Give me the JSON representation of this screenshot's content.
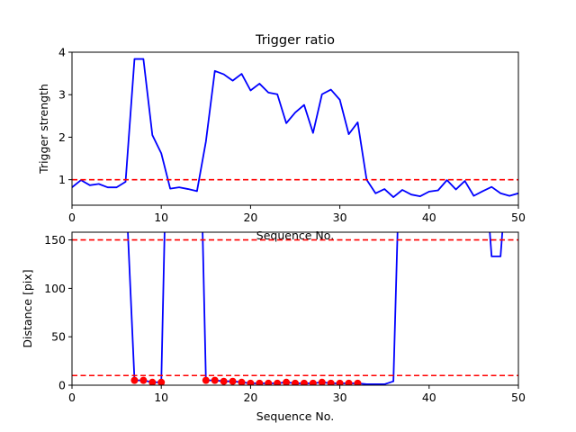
{
  "chart_data": [
    {
      "type": "line",
      "title": "Trigger ratio",
      "xlabel": "Sequence No.",
      "ylabel": "Trigger strength",
      "xlim": [
        0,
        50
      ],
      "ylim": [
        0.4,
        4
      ],
      "xticks": [
        0,
        10,
        20,
        30,
        40,
        50
      ],
      "yticks": [
        1,
        2,
        3,
        4
      ],
      "series": [
        {
          "color": "#0000ff",
          "style": "solid",
          "x": [
            0,
            1,
            2,
            3,
            4,
            5,
            6,
            7,
            8,
            9,
            10,
            11,
            12,
            13,
            14,
            15,
            16,
            17,
            18,
            19,
            20,
            21,
            22,
            23,
            24,
            25,
            26,
            27,
            28,
            29,
            30,
            31,
            32,
            33,
            34,
            35,
            36,
            37,
            38,
            39,
            40,
            41,
            42,
            43,
            44,
            45,
            46,
            47,
            48,
            49,
            50
          ],
          "y": [
            0.82,
            0.99,
            0.87,
            0.9,
            0.82,
            0.82,
            0.95,
            3.84,
            3.84,
            2.05,
            1.62,
            0.79,
            0.82,
            0.78,
            0.73,
            1.9,
            3.56,
            3.48,
            3.33,
            3.49,
            3.1,
            3.26,
            3.05,
            3.01,
            2.33,
            2.58,
            2.76,
            2.1,
            3.01,
            3.12,
            2.88,
            2.07,
            2.35,
            1.0,
            0.68,
            0.78,
            0.59,
            0.76,
            0.65,
            0.61,
            0.72,
            0.75,
            0.99,
            0.77,
            0.97,
            0.62,
            0.73,
            0.83,
            0.68,
            0.62,
            0.68
          ]
        }
      ],
      "hlines": [
        {
          "y": 1.0,
          "color": "#ff0000",
          "style": "dashed"
        }
      ]
    },
    {
      "type": "line",
      "title": "",
      "xlabel": "Sequence No.",
      "ylabel": "Distance [pix]",
      "xlim": [
        0,
        50
      ],
      "ylim": [
        0,
        158
      ],
      "xticks": [
        0,
        10,
        20,
        30,
        40,
        50
      ],
      "yticks": [
        0,
        50,
        100,
        150
      ],
      "series": [
        {
          "color": "#0000ff",
          "style": "solid",
          "x": [
            6.2,
            7,
            8,
            9,
            10,
            10.4,
            14.6,
            15,
            16,
            17,
            18,
            19,
            20,
            21,
            22,
            23,
            24,
            25,
            26,
            27,
            28,
            29,
            30,
            31,
            32,
            33,
            34,
            35,
            36,
            36.5,
            46.7,
            47,
            48,
            48.3
          ],
          "y": [
            170,
            5,
            5,
            3,
            3,
            170,
            170,
            5,
            5,
            4,
            4,
            3,
            2,
            2,
            2,
            2,
            3,
            2,
            2,
            2,
            3,
            2,
            2,
            2,
            2,
            1,
            1,
            1,
            4,
            170,
            170,
            133,
            133,
            170
          ]
        },
        {
          "type": "scatter",
          "color": "#ff0000",
          "marker": "circle",
          "x": [
            7,
            8,
            9,
            10,
            15,
            16,
            17,
            18,
            19,
            20,
            21,
            22,
            23,
            24,
            25,
            26,
            27,
            28,
            29,
            30,
            31,
            32
          ],
          "y": [
            5,
            5,
            3,
            3,
            5,
            5,
            4,
            4,
            3,
            2,
            2,
            2,
            2,
            3,
            2,
            2,
            2,
            3,
            2,
            2,
            2,
            2
          ]
        }
      ],
      "hlines": [
        {
          "y": 150,
          "color": "#ff0000",
          "style": "dashed"
        },
        {
          "y": 10,
          "color": "#ff0000",
          "style": "dashed"
        }
      ]
    }
  ]
}
